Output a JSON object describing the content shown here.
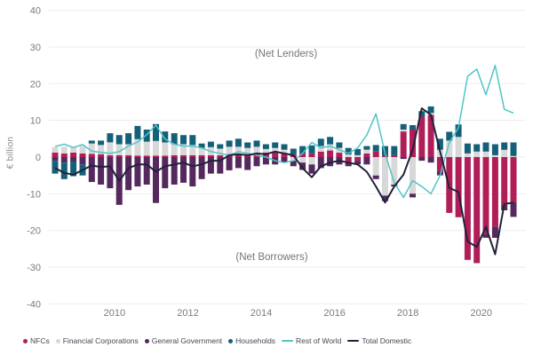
{
  "chart_data": {
    "type": "combo: stacked quarterly bars + two lines",
    "title": "",
    "y_axis": {
      "title": "€ billion",
      "min": -40,
      "max": 40,
      "ticks": [
        40,
        30,
        20,
        10,
        0,
        -10,
        -20,
        -30,
        -40
      ]
    },
    "x_axis": {
      "tick_labels": [
        "2010",
        "2012",
        "2014",
        "2016",
        "2018",
        "2020"
      ]
    },
    "annotations": {
      "net_lenders": "(Net Lenders)",
      "net_borrowers": "(Net Borrowers)"
    },
    "grid": "horizontal only",
    "legend_position": "bottom",
    "quarters": [
      "2008Q3",
      "2008Q4",
      "2009Q1",
      "2009Q2",
      "2009Q3",
      "2009Q4",
      "2010Q1",
      "2010Q2",
      "2010Q3",
      "2010Q4",
      "2011Q1",
      "2011Q2",
      "2011Q3",
      "2011Q4",
      "2012Q1",
      "2012Q2",
      "2012Q3",
      "2012Q4",
      "2013Q1",
      "2013Q2",
      "2013Q3",
      "2013Q4",
      "2014Q1",
      "2014Q2",
      "2014Q3",
      "2014Q4",
      "2015Q1",
      "2015Q2",
      "2015Q3",
      "2015Q4",
      "2016Q1",
      "2016Q2",
      "2016Q3",
      "2016Q4",
      "2017Q1",
      "2017Q2",
      "2017Q3",
      "2017Q4",
      "2018Q1",
      "2018Q2",
      "2018Q3",
      "2018Q4",
      "2019Q1",
      "2019Q2",
      "2019Q3",
      "2019Q4",
      "2020Q1",
      "2020Q2",
      "2020Q3",
      "2020Q4",
      "2021Q1"
    ],
    "bar_series": [
      {
        "key": "nfcs",
        "name": "NFCs",
        "color": "#b01e58",
        "values": [
          1.2,
          1.0,
          1.2,
          1.0,
          0.9,
          0.8,
          0.5,
          0.5,
          0.5,
          0.4,
          0.4,
          0.4,
          0.4,
          0.5,
          0.5,
          0.5,
          0.5,
          0.5,
          0.5,
          0.8,
          0.8,
          0.8,
          1.0,
          1.2,
          1.5,
          1.0,
          0.8,
          1.0,
          1.0,
          1.5,
          1.8,
          1.2,
          -1.5,
          -1.0,
          1.0,
          1.5,
          0.5,
          0.5,
          7.0,
          7.5,
          11.0,
          11.5,
          -4.0,
          -15.2,
          -16.4,
          -28.0,
          -28.9,
          -21.0,
          -19.0,
          -13.0,
          -12.3
        ]
      },
      {
        "key": "financial-corporations",
        "name": "Financial Corporations",
        "color": "#d8d8d8",
        "values": [
          1.5,
          1.8,
          1.5,
          2.0,
          2.8,
          2.5,
          3.5,
          3.0,
          3.0,
          4.5,
          3.8,
          4.0,
          3.6,
          3.0,
          3.0,
          2.8,
          2.0,
          2.2,
          1.8,
          2.0,
          2.0,
          1.7,
          1.8,
          1.0,
          1.0,
          1.0,
          -1.0,
          -1.5,
          -2.0,
          1.5,
          1.7,
          1.3,
          0.7,
          0.5,
          1.0,
          -5.0,
          -10.5,
          -7.5,
          0.5,
          -10.0,
          0.0,
          0.5,
          2.0,
          4.5,
          5.5,
          1.0,
          1.5,
          1.5,
          0.5,
          2.0,
          0.3
        ]
      },
      {
        "key": "general-government",
        "name": "General Government",
        "color": "#55295e",
        "values": [
          -1.0,
          -1.5,
          -1.2,
          -2.0,
          -6.8,
          -7.5,
          -8.5,
          -13.0,
          -9.0,
          -8.0,
          -7.5,
          -12.5,
          -8.5,
          -7.5,
          -7.0,
          -8.0,
          -6.0,
          -4.5,
          -4.5,
          -3.6,
          -3.0,
          -3.5,
          -2.5,
          -2.0,
          -2.0,
          -1.5,
          -1.5,
          -2.0,
          -2.5,
          -3.0,
          -2.5,
          -2.0,
          -1.0,
          -1.0,
          -2.0,
          -1.0,
          -1.5,
          -0.5,
          -0.5,
          -1.0,
          -1.0,
          -1.5,
          -1.0,
          0.0,
          0.0,
          0.0,
          0.0,
          -1.0,
          -3.0,
          -1.5,
          -4.0
        ]
      },
      {
        "key": "households",
        "name": "Households",
        "color": "#156079",
        "values": [
          -3.5,
          -4.5,
          -4.0,
          -3.0,
          0.8,
          1.2,
          2.5,
          2.5,
          3.0,
          3.6,
          3.3,
          4.6,
          3.0,
          3.0,
          2.5,
          2.7,
          1.2,
          1.5,
          1.2,
          1.7,
          2.2,
          1.5,
          1.7,
          1.3,
          1.5,
          1.5,
          1.5,
          2.0,
          2.2,
          2.0,
          2.0,
          1.5,
          1.8,
          1.7,
          1.0,
          1.8,
          2.5,
          2.5,
          1.5,
          1.2,
          1.5,
          1.8,
          3.0,
          2.4,
          3.4,
          2.7,
          2.0,
          2.5,
          3.0,
          2.0,
          3.7
        ]
      }
    ],
    "line_series": [
      {
        "key": "rest-of-world",
        "name": "Rest of World",
        "color": "#4fc5c8",
        "width": 1.5,
        "values": [
          2.9,
          3.5,
          2.6,
          3.4,
          1.6,
          1.3,
          1.0,
          1.5,
          3.0,
          4.1,
          6.1,
          8.7,
          4.9,
          3.5,
          3.0,
          3.0,
          2.5,
          1.5,
          1.0,
          0.5,
          1.5,
          1.0,
          0.5,
          0.0,
          -1.0,
          -1.5,
          -1.0,
          1.0,
          4.0,
          2.5,
          3.0,
          2.0,
          1.0,
          2.5,
          6.0,
          11.8,
          1.0,
          -7.0,
          -11.0,
          -6.4,
          -8.0,
          -10.0,
          -5.0,
          4.0,
          8.0,
          22.0,
          24.0,
          17.0,
          25.0,
          13.0,
          12.0
        ]
      },
      {
        "key": "total-domestic",
        "name": "Total Domestic",
        "color": "#21213b",
        "width": 2,
        "values": [
          -3.0,
          -4.3,
          -4.8,
          -3.5,
          -2.3,
          -2.7,
          -2.5,
          -6.5,
          -3.0,
          -2.0,
          -2.0,
          -4.0,
          -2.5,
          -2.0,
          -1.5,
          -2.5,
          -2.0,
          -1.0,
          -1.0,
          0.5,
          0.8,
          0.5,
          1.0,
          0.8,
          1.5,
          1.0,
          0.5,
          -3.0,
          -5.5,
          -2.5,
          -1.5,
          -1.0,
          -1.5,
          -2.0,
          -4.0,
          -8.0,
          -12.4,
          -8.0,
          -4.8,
          2.0,
          13.3,
          11.5,
          1.5,
          -8.4,
          -9.5,
          -23.0,
          -24.5,
          -19.0,
          -26.5,
          -12.8,
          -12.4
        ]
      }
    ]
  },
  "legend": {
    "items": [
      {
        "key": "nfcs",
        "label": "NFCs",
        "color": "#b01e58",
        "marker": "dot"
      },
      {
        "key": "financial-corporations",
        "label": "Financial Corporations",
        "color": "#d8d8d8",
        "marker": "dot"
      },
      {
        "key": "general-government",
        "label": "General Government",
        "color": "#55295e",
        "marker": "dot"
      },
      {
        "key": "households",
        "label": "Households",
        "color": "#156079",
        "marker": "dot"
      },
      {
        "key": "rest-of-world",
        "label": "Rest of World",
        "color": "#4fc5c8",
        "marker": "line"
      },
      {
        "key": "total-domestic",
        "label": "Total Domestic",
        "color": "#21213b",
        "marker": "line"
      }
    ]
  }
}
